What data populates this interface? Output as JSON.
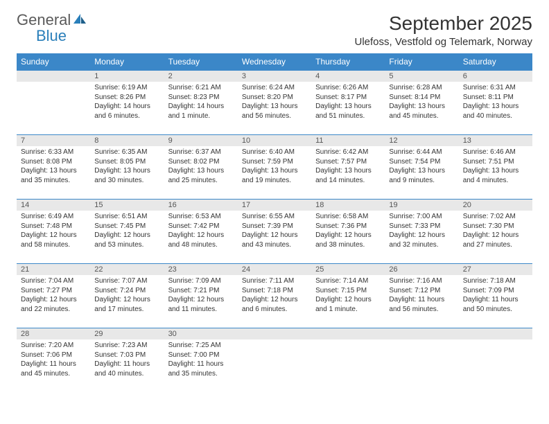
{
  "logo": {
    "text1": "General",
    "text2": "Blue"
  },
  "header": {
    "title": "September 2025",
    "location": "Ulefoss, Vestfold og Telemark, Norway"
  },
  "colors": {
    "headerBg": "#3b87c8",
    "headerText": "#ffffff",
    "dayNumBg": "#e8e8e8",
    "text": "#333333",
    "logoGray": "#5a5a5a",
    "logoBlue": "#2a7fba"
  },
  "dayNames": [
    "Sunday",
    "Monday",
    "Tuesday",
    "Wednesday",
    "Thursday",
    "Friday",
    "Saturday"
  ],
  "weeks": [
    [
      {
        "empty": true
      },
      {
        "num": "1",
        "sunrise": "Sunrise: 6:19 AM",
        "sunset": "Sunset: 8:26 PM",
        "daylight": "Daylight: 14 hours and 6 minutes."
      },
      {
        "num": "2",
        "sunrise": "Sunrise: 6:21 AM",
        "sunset": "Sunset: 8:23 PM",
        "daylight": "Daylight: 14 hours and 1 minute."
      },
      {
        "num": "3",
        "sunrise": "Sunrise: 6:24 AM",
        "sunset": "Sunset: 8:20 PM",
        "daylight": "Daylight: 13 hours and 56 minutes."
      },
      {
        "num": "4",
        "sunrise": "Sunrise: 6:26 AM",
        "sunset": "Sunset: 8:17 PM",
        "daylight": "Daylight: 13 hours and 51 minutes."
      },
      {
        "num": "5",
        "sunrise": "Sunrise: 6:28 AM",
        "sunset": "Sunset: 8:14 PM",
        "daylight": "Daylight: 13 hours and 45 minutes."
      },
      {
        "num": "6",
        "sunrise": "Sunrise: 6:31 AM",
        "sunset": "Sunset: 8:11 PM",
        "daylight": "Daylight: 13 hours and 40 minutes."
      }
    ],
    [
      {
        "num": "7",
        "sunrise": "Sunrise: 6:33 AM",
        "sunset": "Sunset: 8:08 PM",
        "daylight": "Daylight: 13 hours and 35 minutes."
      },
      {
        "num": "8",
        "sunrise": "Sunrise: 6:35 AM",
        "sunset": "Sunset: 8:05 PM",
        "daylight": "Daylight: 13 hours and 30 minutes."
      },
      {
        "num": "9",
        "sunrise": "Sunrise: 6:37 AM",
        "sunset": "Sunset: 8:02 PM",
        "daylight": "Daylight: 13 hours and 25 minutes."
      },
      {
        "num": "10",
        "sunrise": "Sunrise: 6:40 AM",
        "sunset": "Sunset: 7:59 PM",
        "daylight": "Daylight: 13 hours and 19 minutes."
      },
      {
        "num": "11",
        "sunrise": "Sunrise: 6:42 AM",
        "sunset": "Sunset: 7:57 PM",
        "daylight": "Daylight: 13 hours and 14 minutes."
      },
      {
        "num": "12",
        "sunrise": "Sunrise: 6:44 AM",
        "sunset": "Sunset: 7:54 PM",
        "daylight": "Daylight: 13 hours and 9 minutes."
      },
      {
        "num": "13",
        "sunrise": "Sunrise: 6:46 AM",
        "sunset": "Sunset: 7:51 PM",
        "daylight": "Daylight: 13 hours and 4 minutes."
      }
    ],
    [
      {
        "num": "14",
        "sunrise": "Sunrise: 6:49 AM",
        "sunset": "Sunset: 7:48 PM",
        "daylight": "Daylight: 12 hours and 58 minutes."
      },
      {
        "num": "15",
        "sunrise": "Sunrise: 6:51 AM",
        "sunset": "Sunset: 7:45 PM",
        "daylight": "Daylight: 12 hours and 53 minutes."
      },
      {
        "num": "16",
        "sunrise": "Sunrise: 6:53 AM",
        "sunset": "Sunset: 7:42 PM",
        "daylight": "Daylight: 12 hours and 48 minutes."
      },
      {
        "num": "17",
        "sunrise": "Sunrise: 6:55 AM",
        "sunset": "Sunset: 7:39 PM",
        "daylight": "Daylight: 12 hours and 43 minutes."
      },
      {
        "num": "18",
        "sunrise": "Sunrise: 6:58 AM",
        "sunset": "Sunset: 7:36 PM",
        "daylight": "Daylight: 12 hours and 38 minutes."
      },
      {
        "num": "19",
        "sunrise": "Sunrise: 7:00 AM",
        "sunset": "Sunset: 7:33 PM",
        "daylight": "Daylight: 12 hours and 32 minutes."
      },
      {
        "num": "20",
        "sunrise": "Sunrise: 7:02 AM",
        "sunset": "Sunset: 7:30 PM",
        "daylight": "Daylight: 12 hours and 27 minutes."
      }
    ],
    [
      {
        "num": "21",
        "sunrise": "Sunrise: 7:04 AM",
        "sunset": "Sunset: 7:27 PM",
        "daylight": "Daylight: 12 hours and 22 minutes."
      },
      {
        "num": "22",
        "sunrise": "Sunrise: 7:07 AM",
        "sunset": "Sunset: 7:24 PM",
        "daylight": "Daylight: 12 hours and 17 minutes."
      },
      {
        "num": "23",
        "sunrise": "Sunrise: 7:09 AM",
        "sunset": "Sunset: 7:21 PM",
        "daylight": "Daylight: 12 hours and 11 minutes."
      },
      {
        "num": "24",
        "sunrise": "Sunrise: 7:11 AM",
        "sunset": "Sunset: 7:18 PM",
        "daylight": "Daylight: 12 hours and 6 minutes."
      },
      {
        "num": "25",
        "sunrise": "Sunrise: 7:14 AM",
        "sunset": "Sunset: 7:15 PM",
        "daylight": "Daylight: 12 hours and 1 minute."
      },
      {
        "num": "26",
        "sunrise": "Sunrise: 7:16 AM",
        "sunset": "Sunset: 7:12 PM",
        "daylight": "Daylight: 11 hours and 56 minutes."
      },
      {
        "num": "27",
        "sunrise": "Sunrise: 7:18 AM",
        "sunset": "Sunset: 7:09 PM",
        "daylight": "Daylight: 11 hours and 50 minutes."
      }
    ],
    [
      {
        "num": "28",
        "sunrise": "Sunrise: 7:20 AM",
        "sunset": "Sunset: 7:06 PM",
        "daylight": "Daylight: 11 hours and 45 minutes."
      },
      {
        "num": "29",
        "sunrise": "Sunrise: 7:23 AM",
        "sunset": "Sunset: 7:03 PM",
        "daylight": "Daylight: 11 hours and 40 minutes."
      },
      {
        "num": "30",
        "sunrise": "Sunrise: 7:25 AM",
        "sunset": "Sunset: 7:00 PM",
        "daylight": "Daylight: 11 hours and 35 minutes."
      },
      {
        "empty": true
      },
      {
        "empty": true
      },
      {
        "empty": true
      },
      {
        "empty": true
      }
    ]
  ]
}
